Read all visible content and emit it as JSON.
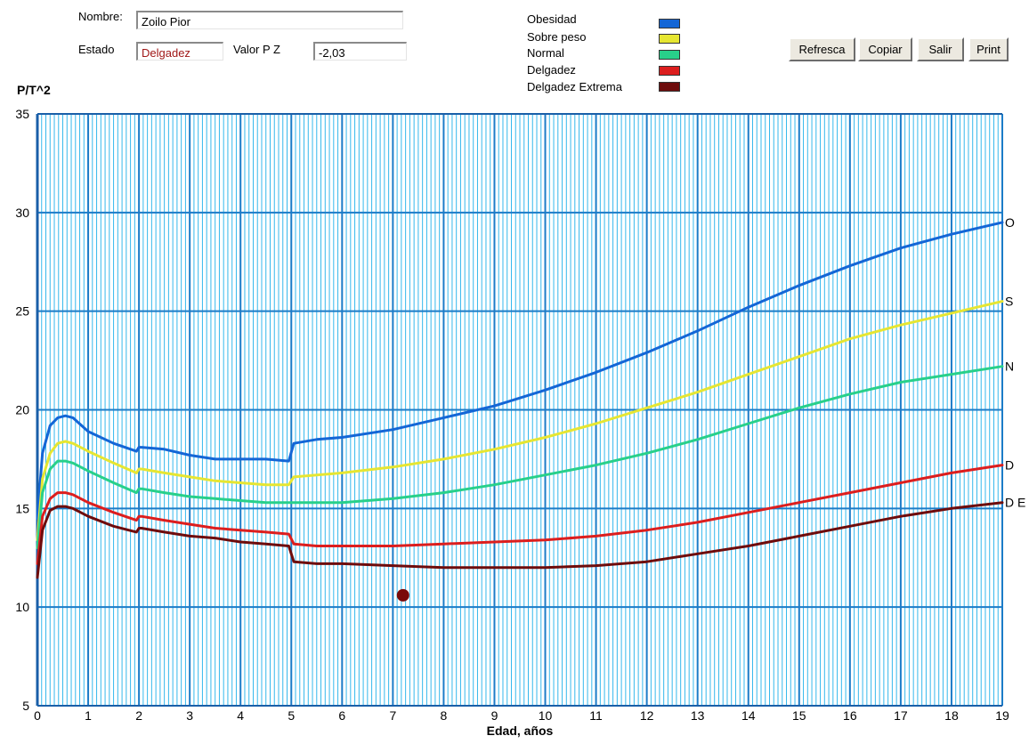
{
  "form": {
    "nombre_label": "Nombre:",
    "nombre_value": "Zoilo Pior",
    "estado_label": "Estado",
    "estado_value": "Delgadez",
    "valorpz_label": "Valor P Z",
    "valorpz_value": "-2,03"
  },
  "buttons": {
    "refresca": "Refresca",
    "copiar": "Copiar",
    "salir": "Salir",
    "print": "Print"
  },
  "legend": [
    {
      "label": "Obesidad",
      "color": "#1466d6"
    },
    {
      "label": "Sobre peso",
      "color": "#e6e632"
    },
    {
      "label": "Normal",
      "color": "#28d08a"
    },
    {
      "label": "Delgadez",
      "color": "#dc1e1e"
    },
    {
      "label": "Delgadez Extrema",
      "color": "#6e0c0c"
    }
  ],
  "chart_data": {
    "type": "line",
    "ylabel": "P/T^2",
    "xlabel": "Edad, años",
    "xlim": [
      0,
      19
    ],
    "ylim": [
      5,
      35
    ],
    "xticks": [
      0,
      1,
      2,
      3,
      4,
      5,
      6,
      7,
      8,
      9,
      10,
      11,
      12,
      13,
      14,
      15,
      16,
      17,
      18,
      19
    ],
    "yticks": [
      5,
      10,
      15,
      20,
      25,
      30,
      35
    ],
    "grid": true,
    "series": [
      {
        "name": "Obesidad",
        "end_label": "O",
        "color": "#1466d6",
        "x": [
          0,
          0.1,
          0.25,
          0.4,
          0.55,
          0.7,
          1,
          1.5,
          1.95,
          2,
          2.05,
          2.5,
          3,
          3.5,
          4,
          4.5,
          4.95,
          5.05,
          5.5,
          6,
          7,
          8,
          9,
          10,
          11,
          12,
          13,
          14,
          15,
          16,
          17,
          18,
          19
        ],
        "y": [
          14.5,
          17.8,
          19.2,
          19.6,
          19.7,
          19.6,
          18.9,
          18.3,
          17.9,
          18.1,
          18.1,
          18.0,
          17.7,
          17.5,
          17.5,
          17.5,
          17.4,
          18.3,
          18.5,
          18.6,
          19.0,
          19.6,
          20.2,
          21.0,
          21.9,
          22.9,
          24.0,
          25.2,
          26.3,
          27.3,
          28.2,
          28.9,
          29.5
        ]
      },
      {
        "name": "Sobre peso",
        "end_label": "S",
        "color": "#e6e632",
        "x": [
          0,
          0.1,
          0.25,
          0.4,
          0.55,
          0.7,
          1,
          1.5,
          1.95,
          2,
          2.05,
          2.5,
          3,
          3.5,
          4,
          4.5,
          4.95,
          5.05,
          5.5,
          6,
          7,
          8,
          9,
          10,
          11,
          12,
          13,
          14,
          15,
          16,
          17,
          18,
          19
        ],
        "y": [
          13.4,
          16.5,
          17.8,
          18.3,
          18.4,
          18.3,
          17.9,
          17.3,
          16.8,
          17.0,
          17.0,
          16.8,
          16.6,
          16.4,
          16.3,
          16.2,
          16.2,
          16.6,
          16.7,
          16.8,
          17.1,
          17.5,
          18.0,
          18.6,
          19.3,
          20.1,
          20.9,
          21.8,
          22.7,
          23.6,
          24.3,
          24.9,
          25.5
        ]
      },
      {
        "name": "Normal",
        "end_label": "N",
        "color": "#28d08a",
        "x": [
          0,
          0.1,
          0.25,
          0.4,
          0.55,
          0.7,
          1,
          1.5,
          1.95,
          2,
          2.05,
          2.5,
          3,
          3.5,
          4,
          4.5,
          5,
          6,
          7,
          8,
          9,
          10,
          11,
          12,
          13,
          14,
          15,
          16,
          17,
          18,
          19
        ],
        "y": [
          13.0,
          15.8,
          17.0,
          17.4,
          17.4,
          17.3,
          16.9,
          16.3,
          15.8,
          16.0,
          16.0,
          15.8,
          15.6,
          15.5,
          15.4,
          15.3,
          15.3,
          15.3,
          15.5,
          15.8,
          16.2,
          16.7,
          17.2,
          17.8,
          18.5,
          19.3,
          20.1,
          20.8,
          21.4,
          21.8,
          22.2
        ]
      },
      {
        "name": "Delgadez",
        "end_label": "D",
        "color": "#dc1e1e",
        "x": [
          0,
          0.1,
          0.25,
          0.4,
          0.55,
          0.7,
          1,
          1.5,
          1.95,
          2,
          2.05,
          2.5,
          3,
          3.5,
          4,
          4.5,
          4.95,
          5.05,
          5.5,
          6,
          7,
          8,
          9,
          10,
          11,
          12,
          13,
          14,
          15,
          16,
          17,
          18,
          19
        ],
        "y": [
          12.2,
          14.6,
          15.5,
          15.8,
          15.8,
          15.7,
          15.3,
          14.8,
          14.4,
          14.6,
          14.6,
          14.4,
          14.2,
          14.0,
          13.9,
          13.8,
          13.7,
          13.2,
          13.1,
          13.1,
          13.1,
          13.2,
          13.3,
          13.4,
          13.6,
          13.9,
          14.3,
          14.8,
          15.3,
          15.8,
          16.3,
          16.8,
          17.2
        ]
      },
      {
        "name": "Delgadez Extrema",
        "end_label": "D E",
        "color": "#6e0c0c",
        "x": [
          0,
          0.1,
          0.25,
          0.4,
          0.55,
          0.7,
          1,
          1.5,
          1.95,
          2,
          2.05,
          2.5,
          3,
          3.5,
          4,
          4.5,
          4.95,
          5.05,
          5.5,
          6,
          7,
          8,
          9,
          10,
          11,
          12,
          13,
          14,
          15,
          16,
          17,
          18,
          19
        ],
        "y": [
          11.5,
          13.9,
          14.9,
          15.1,
          15.1,
          15.0,
          14.6,
          14.1,
          13.8,
          14.0,
          14.0,
          13.8,
          13.6,
          13.5,
          13.3,
          13.2,
          13.1,
          12.3,
          12.2,
          12.2,
          12.1,
          12.0,
          12.0,
          12.0,
          12.1,
          12.3,
          12.7,
          13.1,
          13.6,
          14.1,
          14.6,
          15.0,
          15.3
        ]
      }
    ],
    "points": [
      {
        "x": 7.2,
        "y": 10.6,
        "color": "#7a0a0a"
      }
    ]
  }
}
